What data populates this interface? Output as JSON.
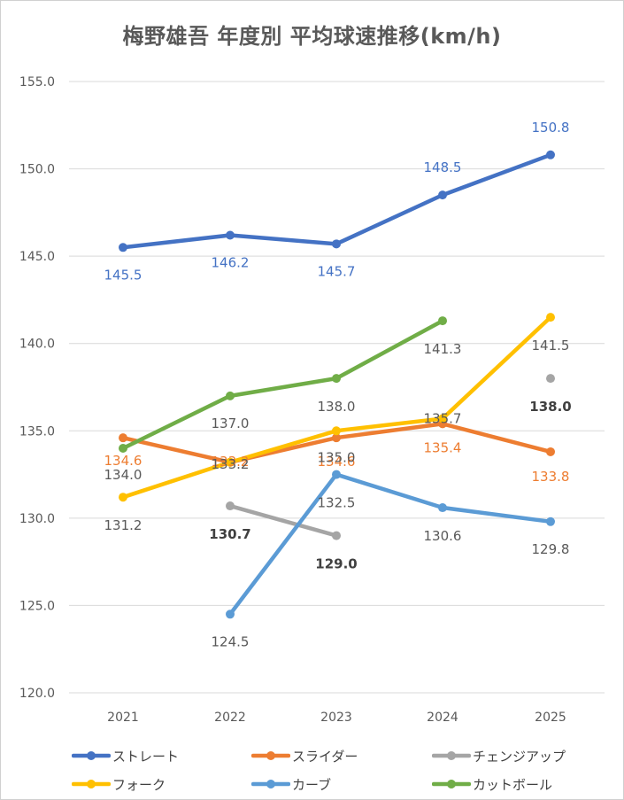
{
  "chart_data": {
    "type": "line",
    "title": "梅野雄吾 年度別 平均球速推移(km/h)",
    "xlabel": "",
    "ylabel": "",
    "categories": [
      "2021",
      "2022",
      "2023",
      "2024",
      "2025"
    ],
    "ylim": [
      120.0,
      155.0
    ],
    "yticks": [
      "120.0",
      "125.0",
      "130.0",
      "135.0",
      "140.0",
      "145.0",
      "150.0",
      "155.0"
    ],
    "grid": true,
    "legend_position": "bottom",
    "series": [
      {
        "name": "ストレート",
        "color": "#4472C4",
        "values": [
          145.5,
          146.2,
          145.7,
          148.5,
          150.8
        ],
        "labels": [
          "145.5",
          "146.2",
          "145.7",
          "148.5",
          "150.8"
        ],
        "label_color": "#4472C4",
        "bold": [
          false,
          false,
          false,
          false,
          false
        ]
      },
      {
        "name": "スライダー",
        "color": "#ED7D31",
        "values": [
          134.6,
          133.2,
          134.6,
          135.4,
          133.8
        ],
        "labels": [
          "134.6",
          "133.2",
          "134.6",
          "135.4",
          "133.8"
        ],
        "label_color": "#ED7D31",
        "bold": [
          false,
          false,
          false,
          false,
          false
        ]
      },
      {
        "name": "チェンジアップ",
        "color": "#A5A5A5",
        "values": [
          null,
          130.7,
          129.0,
          null,
          138.0
        ],
        "labels": [
          null,
          "130.7",
          "129.0",
          null,
          "138.0"
        ],
        "label_color": "#404040",
        "bold": [
          false,
          true,
          true,
          false,
          true
        ]
      },
      {
        "name": "フォーク",
        "color": "#FFC000",
        "values": [
          131.2,
          133.2,
          135.0,
          135.7,
          141.5
        ],
        "labels": [
          "131.2",
          "133.2",
          "135.0",
          "135.7",
          "141.5"
        ],
        "label_color": "#595959",
        "bold": [
          false,
          false,
          false,
          false,
          false
        ]
      },
      {
        "name": "カーブ",
        "color": "#5B9BD5",
        "values": [
          null,
          124.5,
          132.5,
          130.6,
          129.8
        ],
        "labels": [
          null,
          "124.5",
          "132.5",
          "130.6",
          "129.8"
        ],
        "label_color": "#595959",
        "bold": [
          false,
          false,
          false,
          false,
          false
        ]
      },
      {
        "name": "カットボール",
        "color": "#70AD47",
        "values": [
          134.0,
          137.0,
          138.0,
          141.3,
          null
        ],
        "labels": [
          "134.0",
          "137.0",
          "138.0",
          "141.3",
          null
        ],
        "label_color": "#595959",
        "bold": [
          false,
          false,
          false,
          false,
          false
        ]
      }
    ]
  }
}
